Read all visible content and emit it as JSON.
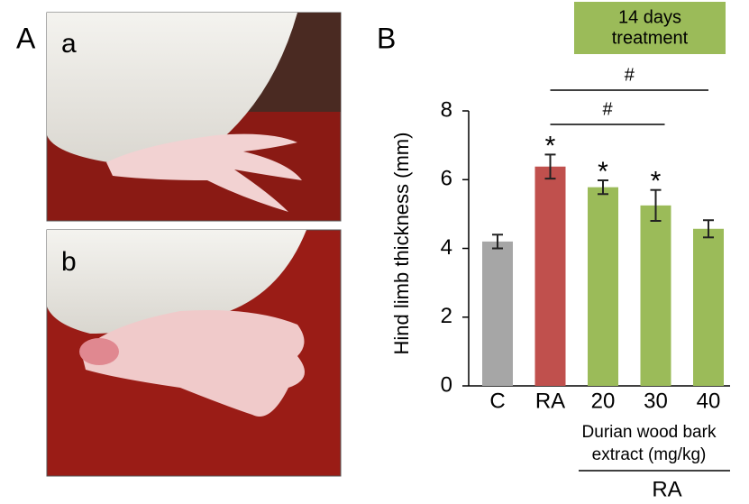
{
  "panel_labels": [
    "A",
    "B"
  ],
  "photo_labels": [
    "a",
    "b"
  ],
  "chart_data": {
    "type": "bar",
    "ylabel": "Hind limb thickness (mm)",
    "categories": [
      "C",
      "RA",
      "20",
      "30",
      "40"
    ],
    "values": [
      4.2,
      6.38,
      5.78,
      5.25,
      4.57
    ],
    "errors": [
      0.2,
      0.35,
      0.2,
      0.45,
      0.25
    ],
    "colors": [
      "#a6a6a6",
      "#c0504d",
      "#9bbb59",
      "#9bbb59",
      "#9bbb59"
    ],
    "star_labels": [
      null,
      "*",
      "*",
      "*",
      null
    ],
    "brackets": [
      {
        "from": "RA",
        "to": "40",
        "label": "#"
      },
      {
        "from": "RA",
        "to": "30",
        "label": "#"
      }
    ],
    "ylim": [
      0,
      8
    ],
    "yticks": [
      0,
      2,
      4,
      6,
      8
    ],
    "treatment_lines": [
      "14 days",
      "treatment"
    ],
    "group_lines": [
      "Durian wood bark",
      "extract (mg/kg)"
    ],
    "group_label": "RA"
  }
}
